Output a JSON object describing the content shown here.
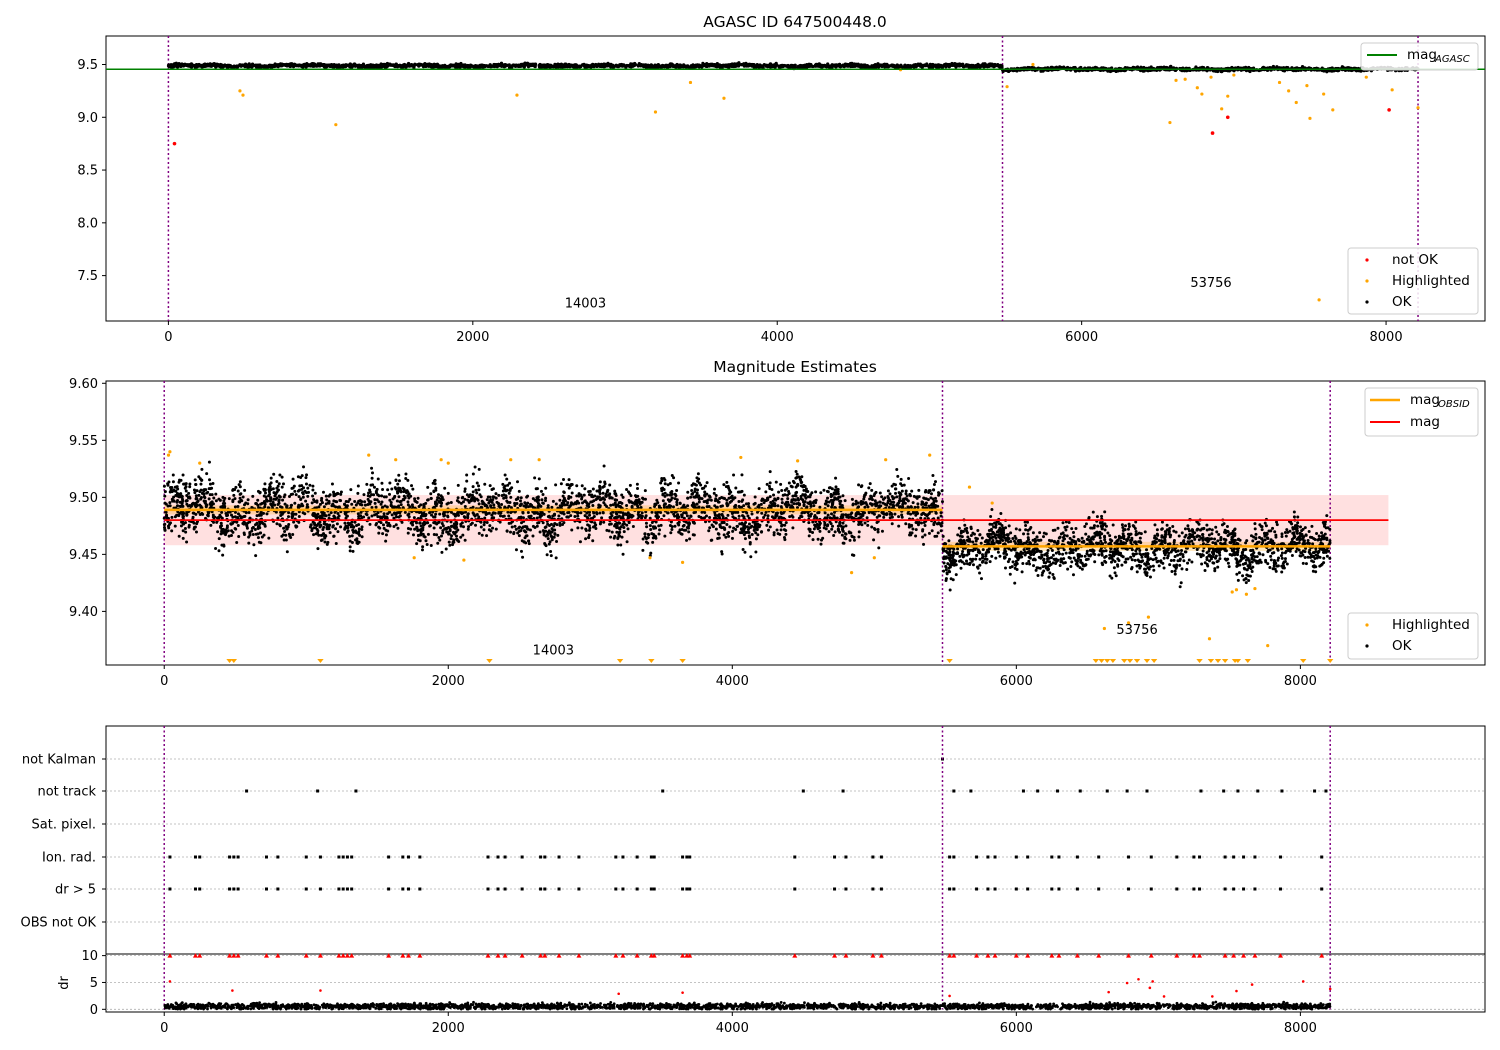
{
  "chart_data": [
    {
      "type": "scatter",
      "title": "AGASC ID 647500448.0",
      "xlim": [
        -410,
        8650
      ],
      "ylim": [
        7.07,
        9.77
      ],
      "xticks": [
        0,
        2000,
        4000,
        6000,
        8000
      ],
      "yticks": [
        7.5,
        8.0,
        8.5,
        9.0,
        9.5
      ],
      "grid": false,
      "obs_boundaries": [
        0,
        5480,
        8210
      ],
      "obs_labels": [
        {
          "text": "14003",
          "x": 2740,
          "y": 7.2
        },
        {
          "text": "53756",
          "x": 6850,
          "y": 7.39
        }
      ],
      "reference_line": {
        "name": "mag$_{AGASC}$",
        "label_main": "mag",
        "label_sub": "AGASC",
        "y": 9.455,
        "color": "#008000"
      },
      "series": [
        {
          "name": "not OK",
          "color": "#ff0000",
          "points": [
            [
              40,
              8.75
            ],
            [
              6860,
              8.85
            ],
            [
              6960,
              9.0
            ],
            [
              8020,
              9.07
            ]
          ]
        },
        {
          "name": "Highlighted",
          "color": "#ffa500",
          "points": [
            [
              470,
              9.25
            ],
            [
              490,
              9.21
            ],
            [
              1100,
              8.93
            ],
            [
              2290,
              9.21
            ],
            [
              3200,
              9.05
            ],
            [
              3430,
              9.33
            ],
            [
              3650,
              9.18
            ],
            [
              4810,
              9.45
            ],
            [
              5510,
              9.29
            ],
            [
              5680,
              9.5
            ],
            [
              6580,
              8.95
            ],
            [
              6620,
              9.35
            ],
            [
              6680,
              9.36
            ],
            [
              6760,
              9.28
            ],
            [
              6790,
              9.22
            ],
            [
              6850,
              9.38
            ],
            [
              6920,
              9.08
            ],
            [
              6960,
              9.2
            ],
            [
              7000,
              9.4
            ],
            [
              7300,
              9.33
            ],
            [
              7360,
              9.25
            ],
            [
              7410,
              9.14
            ],
            [
              7480,
              9.3
            ],
            [
              7500,
              8.99
            ],
            [
              7560,
              7.27
            ],
            [
              7590,
              9.22
            ],
            [
              7650,
              9.07
            ],
            [
              7870,
              9.38
            ],
            [
              8040,
              9.26
            ],
            [
              8210,
              9.09
            ]
          ]
        },
        {
          "name": "OK",
          "color": "#000000",
          "band": [
            [
              0,
              5480,
              9.488,
              0.014
            ],
            [
              5480,
              8210,
              9.456,
              0.014
            ]
          ]
        }
      ],
      "legend": [
        "not OK",
        "Highlighted",
        "OK"
      ],
      "legend_position": "lower-right"
    },
    {
      "type": "scatter",
      "title": "Magnitude Estimates",
      "xlim": [
        -410,
        9300
      ],
      "ylim": [
        9.353,
        9.602
      ],
      "xticks": [
        0,
        2000,
        4000,
        6000,
        8000
      ],
      "yticks": [
        9.4,
        9.45,
        9.5,
        9.55,
        9.6
      ],
      "grid": false,
      "obs_boundaries": [
        0,
        5480,
        8210
      ],
      "obs_labels": [
        {
          "text": "14003",
          "x": 2740,
          "y": 9.362
        },
        {
          "text": "53756",
          "x": 6850,
          "y": 9.38
        }
      ],
      "lines": [
        {
          "name": "mag$_{OBSID}$",
          "label_main": "mag",
          "label_sub": "OBSID",
          "color": "#ffa500",
          "segments": [
            [
              0,
              5480,
              9.489
            ],
            [
              5480,
              8210,
              9.457
            ]
          ],
          "band_halfwidth": 0.004
        },
        {
          "name": "mag",
          "label_main": "mag",
          "label_sub": "",
          "color": "#ff0000",
          "segments": [
            [
              0,
              8620,
              9.48
            ]
          ],
          "band": [
            9.458,
            9.502
          ]
        }
      ],
      "series": [
        {
          "name": "Highlighted",
          "color": "#ffa500",
          "points": [
            [
              30,
              9.537
            ],
            [
              40,
              9.54
            ],
            [
              250,
              9.53
            ],
            [
              1440,
              9.537
            ],
            [
              1630,
              9.533
            ],
            [
              1760,
              9.447
            ],
            [
              1950,
              9.533
            ],
            [
              2000,
              9.53
            ],
            [
              2110,
              9.445
            ],
            [
              2440,
              9.533
            ],
            [
              2640,
              9.533
            ],
            [
              3420,
              9.447
            ],
            [
              3650,
              9.443
            ],
            [
              4060,
              9.535
            ],
            [
              4460,
              9.532
            ],
            [
              4840,
              9.434
            ],
            [
              5000,
              9.447
            ],
            [
              5080,
              9.533
            ],
            [
              5390,
              9.537
            ],
            [
              5670,
              9.509
            ],
            [
              5830,
              9.495
            ],
            [
              7520,
              9.417
            ],
            [
              7550,
              9.419
            ],
            [
              7620,
              9.415
            ],
            [
              7680,
              9.42
            ],
            [
              6620,
              9.385
            ],
            [
              6790,
              9.39
            ],
            [
              6930,
              9.395
            ],
            [
              7360,
              9.376
            ],
            [
              7770,
              9.37
            ]
          ],
          "lower_limit_markers": [
            460,
            490,
            1100,
            2290,
            3210,
            3430,
            3650,
            5530,
            6560,
            6600,
            6640,
            6680,
            6760,
            6800,
            6850,
            6920,
            6970,
            7290,
            7370,
            7420,
            7470,
            7540,
            7560,
            7630,
            8020,
            8210
          ]
        },
        {
          "name": "OK",
          "color": "#000000",
          "band": [
            [
              0,
              5480,
              9.488,
              0.022
            ],
            [
              5480,
              8210,
              9.456,
              0.018
            ]
          ]
        }
      ],
      "legend": [
        "Highlighted",
        "OK"
      ],
      "legend_position": "lower-right"
    },
    {
      "type": "scatter",
      "title": "",
      "xlim": [
        -410,
        9300
      ],
      "categories": [
        "not Kalman",
        "not track",
        "Sat. pixel.",
        "Ion. rad.",
        "dr > 5",
        "OBS not OK"
      ],
      "grid": true,
      "obs_boundaries": [
        0,
        5480,
        8210
      ],
      "flags": {
        "not Kalman": [
          5480
        ],
        "not track": [
          580,
          1080,
          1350,
          3510,
          4500,
          4780,
          5560,
          5680,
          6050,
          6150,
          6290,
          6450,
          6640,
          6780,
          6920,
          7300,
          7460,
          7560,
          7700,
          7870,
          8100,
          8180
        ],
        "Sat. pixel.": [],
        "Ion. rad.": [
          40,
          220,
          250,
          460,
          490,
          520,
          720,
          800,
          1000,
          1100,
          1230,
          1260,
          1290,
          1320,
          1580,
          1680,
          1720,
          1800,
          2280,
          2350,
          2400,
          2520,
          2650,
          2680,
          2780,
          2920,
          3180,
          3230,
          3330,
          3430,
          3450,
          3650,
          3680,
          3700,
          4440,
          4720,
          4800,
          4990,
          5050,
          5530,
          5560,
          5720,
          5800,
          5850,
          6000,
          6080,
          6250,
          6300,
          6430,
          6580,
          6790,
          6950,
          7130,
          7250,
          7290,
          7470,
          7530,
          7600,
          7680,
          7860,
          8150
        ],
        "dr > 5": [
          40,
          220,
          250,
          460,
          490,
          520,
          720,
          800,
          1000,
          1100,
          1230,
          1260,
          1290,
          1320,
          1580,
          1680,
          1720,
          1800,
          2280,
          2350,
          2400,
          2520,
          2650,
          2680,
          2780,
          2920,
          3180,
          3230,
          3330,
          3430,
          3450,
          3650,
          3680,
          3700,
          4440,
          4720,
          4800,
          4990,
          5050,
          5530,
          5560,
          5720,
          5800,
          5850,
          6000,
          6080,
          6250,
          6300,
          6430,
          6580,
          6790,
          6950,
          7130,
          7250,
          7290,
          7470,
          7530,
          7600,
          7680,
          7860,
          8150
        ],
        "OBS not OK": []
      }
    },
    {
      "type": "scatter",
      "title": "",
      "ylabel": "dr",
      "xlim": [
        -410,
        9300
      ],
      "ylim": [
        -0.5,
        10.3
      ],
      "xticks": [
        0,
        2000,
        4000,
        6000,
        8000
      ],
      "yticks": [
        0,
        5,
        10
      ],
      "grid": true,
      "obs_boundaries": [
        0,
        5480,
        8210
      ],
      "series": [
        {
          "name": "dr > 5",
          "color": "#ff0000",
          "points": [
            [
              40,
              5.2
            ],
            [
              480,
              3.5
            ],
            [
              1100,
              3.5
            ],
            [
              3200,
              2.9
            ],
            [
              3650,
              3.1
            ],
            [
              5530,
              2.5
            ],
            [
              6650,
              3.2
            ],
            [
              6780,
              4.9
            ],
            [
              6860,
              5.6
            ],
            [
              6940,
              4.0
            ],
            [
              6960,
              5.2
            ],
            [
              7040,
              2.4
            ],
            [
              7380,
              2.4
            ],
            [
              7550,
              3.4
            ],
            [
              7660,
              4.6
            ],
            [
              8020,
              5.2
            ],
            [
              8210,
              3.8
            ]
          ],
          "capped_at": 10,
          "capped_x": [
            40,
            220,
            250,
            460,
            490,
            520,
            720,
            800,
            1000,
            1100,
            1230,
            1260,
            1290,
            1320,
            1580,
            1680,
            1720,
            1800,
            2280,
            2350,
            2400,
            2520,
            2650,
            2680,
            2780,
            2920,
            3180,
            3230,
            3330,
            3430,
            3450,
            3650,
            3680,
            3700,
            4440,
            4720,
            4800,
            4990,
            5050,
            5530,
            5560,
            5720,
            5800,
            5850,
            6000,
            6080,
            6250,
            6300,
            6430,
            6580,
            6790,
            6950,
            7130,
            7250,
            7290,
            7470,
            7530,
            7600,
            7680,
            7860,
            8150
          ]
        },
        {
          "name": "OK",
          "color": "#000000",
          "band": [
            [
              0,
              8210,
              0.55,
              0.45
            ]
          ]
        }
      ]
    }
  ]
}
